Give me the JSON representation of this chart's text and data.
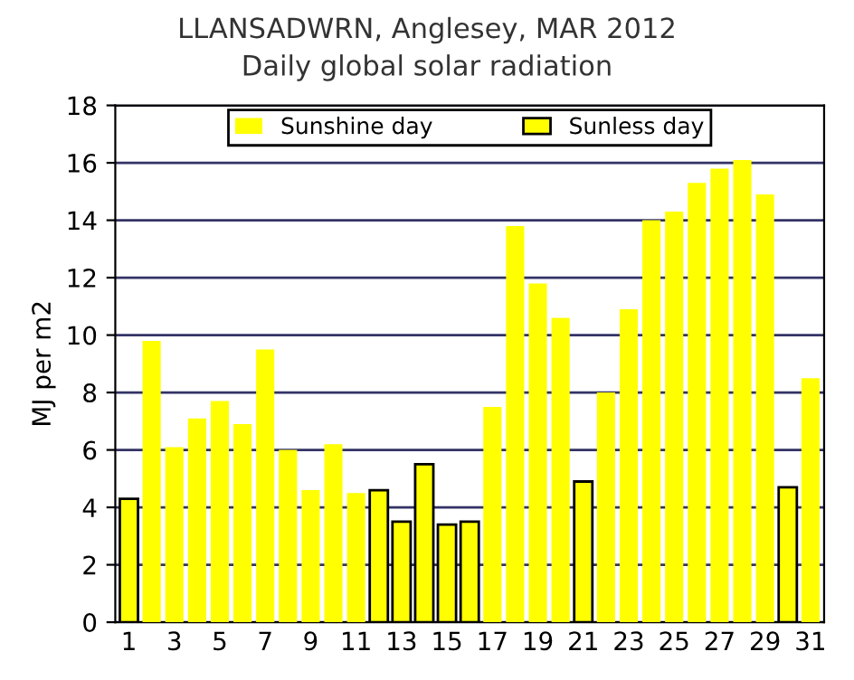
{
  "chart_data": {
    "type": "bar",
    "title": "LLANSADWRN, Anglesey, MAR 2012",
    "subtitle": "Daily global solar radiation",
    "ylabel": "MJ per m2",
    "categories": [
      "1",
      null,
      "3",
      null,
      "5",
      null,
      "7",
      null,
      "9",
      null,
      "11",
      null,
      "13",
      null,
      "15",
      null,
      "17",
      null,
      "19",
      null,
      "21",
      null,
      "23",
      null,
      "25",
      null,
      "27",
      null,
      "29",
      null,
      "31"
    ],
    "series": [
      {
        "name": "Sunshine day",
        "color": "#ffff00",
        "values": [
          null,
          9.8,
          6.1,
          7.1,
          7.7,
          6.9,
          9.5,
          6.0,
          4.6,
          6.2,
          4.5,
          null,
          null,
          null,
          null,
          null,
          7.5,
          13.8,
          11.8,
          10.6,
          null,
          8.0,
          10.9,
          14.0,
          14.3,
          15.3,
          15.8,
          16.1,
          14.9,
          null,
          8.5
        ]
      },
      {
        "name": "Sunless day",
        "color": "#ffff00",
        "values": [
          4.3,
          null,
          null,
          null,
          null,
          null,
          null,
          null,
          null,
          null,
          null,
          4.6,
          3.5,
          5.5,
          3.4,
          3.5,
          null,
          null,
          null,
          null,
          4.9,
          null,
          null,
          null,
          null,
          null,
          null,
          null,
          null,
          4.7,
          null
        ]
      }
    ],
    "ylim": [
      0,
      18
    ],
    "yticks": [
      0,
      2,
      4,
      6,
      8,
      10,
      12,
      14,
      16,
      18
    ],
    "grid": "y",
    "legend": "top"
  }
}
